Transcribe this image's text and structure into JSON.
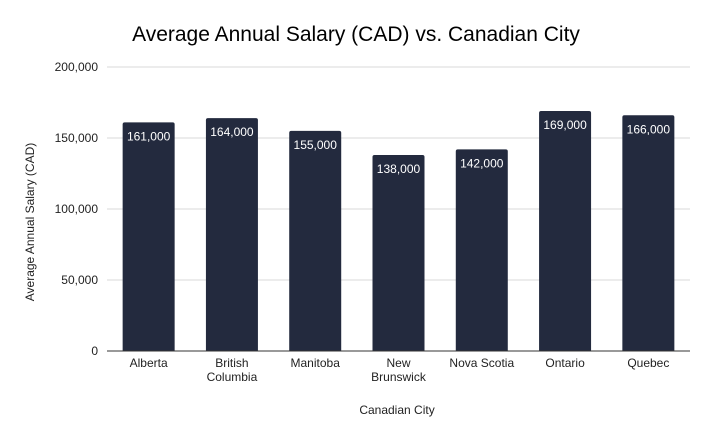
{
  "chart_data": {
    "type": "bar",
    "title": "Average Annual Salary (CAD) vs. Canadian City",
    "xlabel": "Canadian City",
    "ylabel": "Average Annual Salary (CAD)",
    "categories": [
      [
        "Alberta"
      ],
      [
        "British",
        "Columbia"
      ],
      [
        "Manitoba"
      ],
      [
        "New",
        "Brunswick"
      ],
      [
        "Nova Scotia"
      ],
      [
        "Ontario"
      ],
      [
        "Quebec"
      ]
    ],
    "values": [
      161000,
      164000,
      155000,
      138000,
      142000,
      169000,
      166000
    ],
    "data_labels": [
      "161,000",
      "164,000",
      "155,000",
      "138,000",
      "142,000",
      "169,000",
      "166,000"
    ],
    "ylim": [
      0,
      200000
    ],
    "yticks": [
      0,
      50000,
      100000,
      150000,
      200000
    ],
    "ytick_labels": [
      "0",
      "50,000",
      "100,000",
      "150,000",
      "200,000"
    ],
    "grid": true,
    "legend": "none",
    "bar_color": "#232a3e",
    "grid_color": "#d9d9d9",
    "axis_color": "#333333"
  }
}
